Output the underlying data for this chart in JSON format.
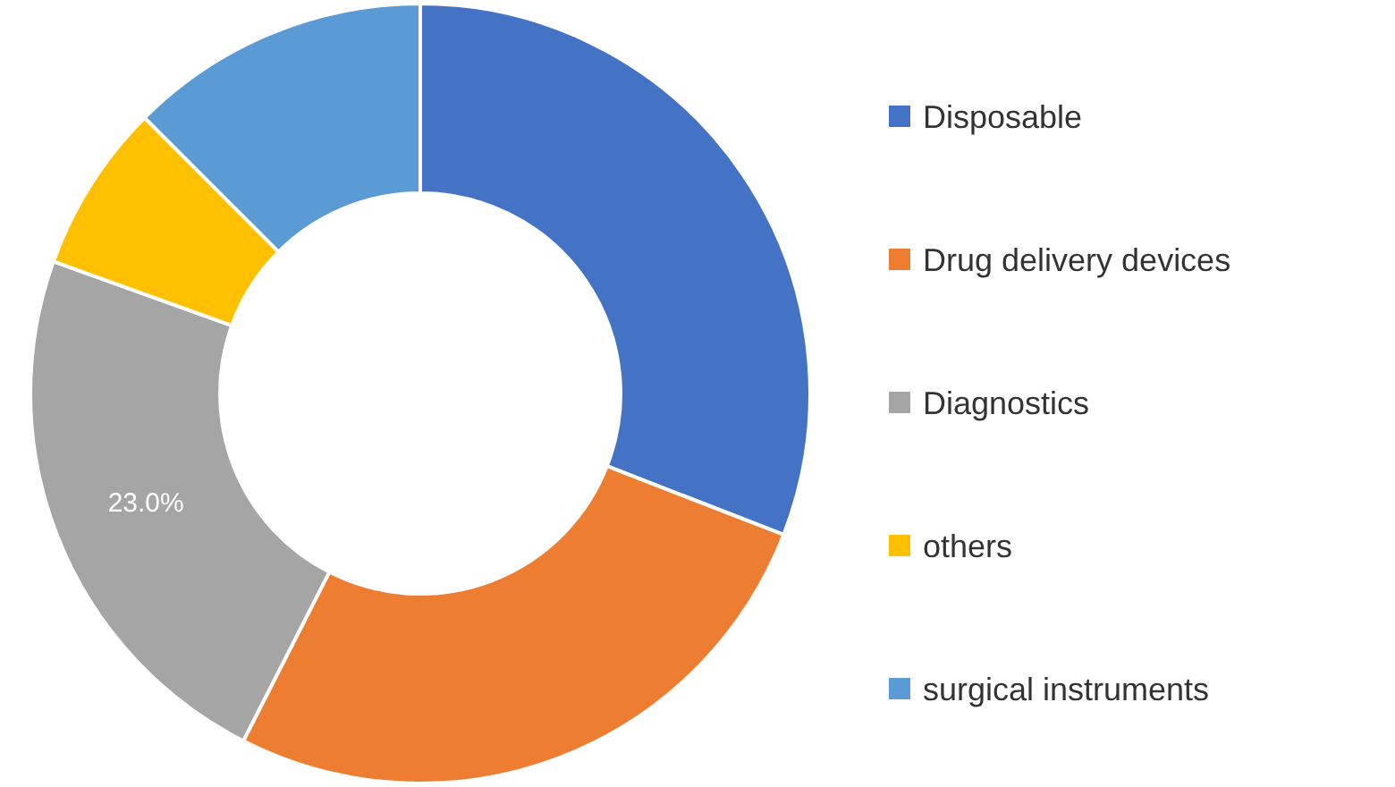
{
  "chart_data": {
    "type": "donut",
    "categories": [
      "Disposable",
      "Drug delivery devices",
      "Diagnostics",
      "others",
      "surgical instruments"
    ],
    "values": [
      30.9,
      26.6,
      23.0,
      7.0,
      12.5
    ],
    "colors": [
      "#4472c4",
      "#ed7d31",
      "#a5a5a5",
      "#ffc000",
      "#5b9bd5"
    ],
    "value_labels": [
      null,
      null,
      "23.0%",
      null,
      null
    ],
    "legend": "right"
  }
}
